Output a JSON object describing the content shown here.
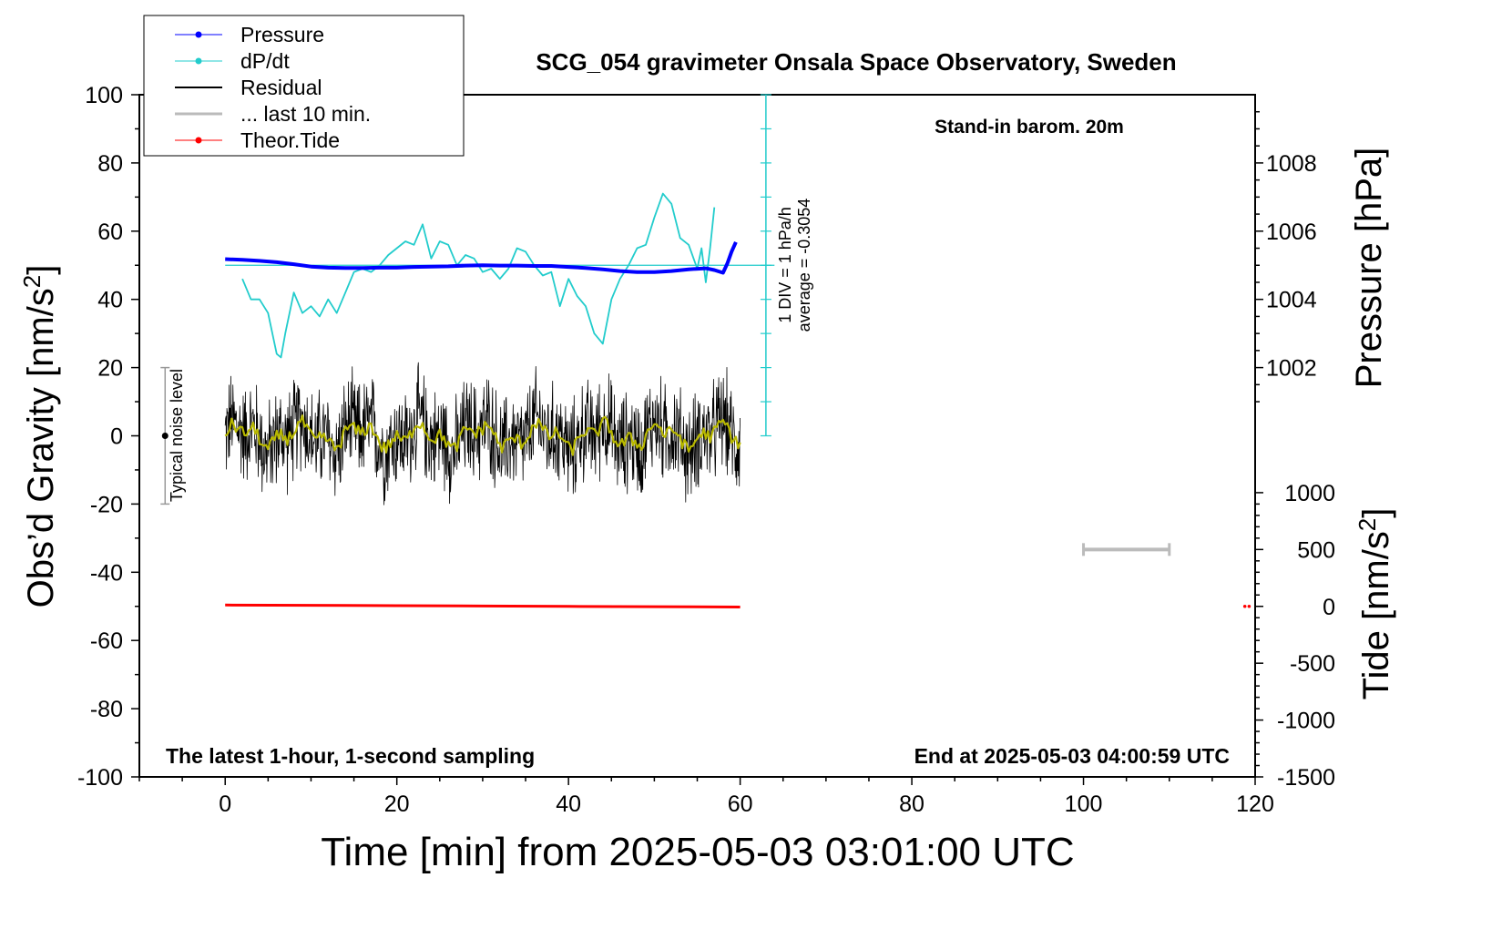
{
  "chart_data": {
    "type": "line",
    "title": "SCG_054 gravimeter Onsala Space Observatory, Sweden",
    "xlabel": "Time [min] from 2025-05-03 03:01:00 UTC",
    "ylabel_left": "Obs’d Gravity [nm/s",
    "ylabel_right_top": "Pressure [hPa]",
    "ylabel_right_bottom": "Tide [nm/s",
    "ylabel_sup": "2",
    "xlim": [
      -10,
      120
    ],
    "ylim_left": [
      -100,
      100
    ],
    "pressure_axis_ticks": [
      "1002",
      "1004",
      "1006",
      "1008"
    ],
    "tide_axis_ticks": [
      "-1500",
      "-1000",
      "-500",
      "0",
      "500",
      "1000"
    ],
    "x_ticks": [
      "0",
      "20",
      "40",
      "60",
      "80",
      "100",
      "120"
    ],
    "y_ticks": [
      "-100",
      "-80",
      "-60",
      "-40",
      "-20",
      "0",
      "20",
      "40",
      "60",
      "80",
      "100"
    ],
    "annotations": {
      "stand_in": "Stand-in barom. 20m",
      "latest": "The latest 1-hour, 1-second sampling",
      "end_at": "End at 2025-05-03 04:00:59 UTC",
      "dpdt_scale": "1 DIV = 1 hPa/h",
      "dpdt_average": "average = -0.3054",
      "noise": "Typical noise level"
    },
    "legend": [
      {
        "label": "Pressure",
        "color": "#0000ff",
        "marker": true
      },
      {
        "label": "dP/dt",
        "color": "#22cccc",
        "marker": true
      },
      {
        "label": "Residual",
        "color": "#000000",
        "marker": false
      },
      {
        "label": "... last 10 min.",
        "color": "#bbbbbb",
        "marker": false
      },
      {
        "label": "Theor.Tide",
        "color": "#ff0000",
        "marker": true
      }
    ],
    "series": [
      {
        "name": "Pressure",
        "color": "#0000ff",
        "x": [
          0,
          2,
          4,
          6,
          8,
          10,
          12,
          14,
          16,
          18,
          20,
          22,
          24,
          26,
          28,
          30,
          32,
          34,
          36,
          38,
          40,
          42,
          44,
          46,
          48,
          50,
          52,
          54,
          56,
          57,
          58,
          58.5,
          59,
          59.5
        ],
        "y": [
          51.8,
          51.6,
          51.3,
          50.9,
          50.3,
          49.6,
          49.3,
          49.2,
          49.2,
          49.3,
          49.3,
          49.5,
          49.6,
          49.7,
          49.9,
          50.0,
          49.9,
          49.9,
          49.8,
          49.8,
          49.5,
          49.2,
          48.8,
          48.3,
          48.0,
          48.0,
          48.3,
          48.8,
          49.1,
          48.6,
          47.8,
          50.5,
          54.0,
          56.8
        ]
      },
      {
        "name": "dP/dt",
        "color": "#22cccc",
        "x": [
          2,
          3,
          4,
          5,
          6,
          6.5,
          7,
          8,
          9,
          10,
          11,
          12,
          13,
          14,
          15,
          16,
          17,
          18,
          19,
          20,
          21,
          22,
          23,
          24,
          25,
          26,
          27,
          28,
          29,
          30,
          31,
          32,
          33,
          34,
          35,
          36,
          37,
          38,
          39,
          40,
          41,
          42,
          43,
          44,
          45,
          46,
          47,
          48,
          49,
          50,
          51,
          52,
          53,
          54,
          55,
          55.5,
          56,
          56.5,
          57
        ],
        "y": [
          46,
          40,
          40,
          36,
          24,
          23,
          30,
          42,
          36,
          38,
          35,
          40,
          36,
          42,
          48,
          49,
          48,
          50,
          53,
          55,
          57,
          56,
          62,
          52,
          57,
          56,
          50,
          53,
          52,
          48,
          49,
          46,
          49,
          55,
          54,
          50,
          47,
          48,
          38,
          46,
          41,
          38,
          30,
          27,
          40,
          46,
          50,
          55,
          56,
          64,
          71,
          68,
          58,
          56,
          49,
          55,
          45,
          55,
          67
        ]
      },
      {
        "name": "Residual",
        "color": "#000000",
        "x_range": [
          0,
          60
        ],
        "y_center": 0,
        "y_spread": 12
      },
      {
        "name": "Smoothed",
        "color": "#b8b800",
        "x_range": [
          0,
          60
        ],
        "y_center": 0,
        "y_spread": 4
      },
      {
        "name": "Theor.Tide",
        "color": "#ff0000",
        "x": [
          0,
          10,
          20,
          30,
          40,
          50,
          60
        ],
        "y": [
          -49.6,
          -49.7,
          -49.8,
          -49.9,
          -50.0,
          -50.1,
          -50.2
        ]
      }
    ],
    "pressure_reference_y": 50,
    "dpdt_scale_bar": {
      "x": 63,
      "y_from": 0,
      "y_to": 100
    },
    "noise_bar": {
      "x": -7,
      "y_from": -20,
      "y_to": 20,
      "center": 0
    },
    "last_10_min_bar": {
      "x_from": 100,
      "x_to": 110,
      "tide_value": 500
    },
    "tide_dots_x": [
      118.8,
      119.3
    ]
  }
}
